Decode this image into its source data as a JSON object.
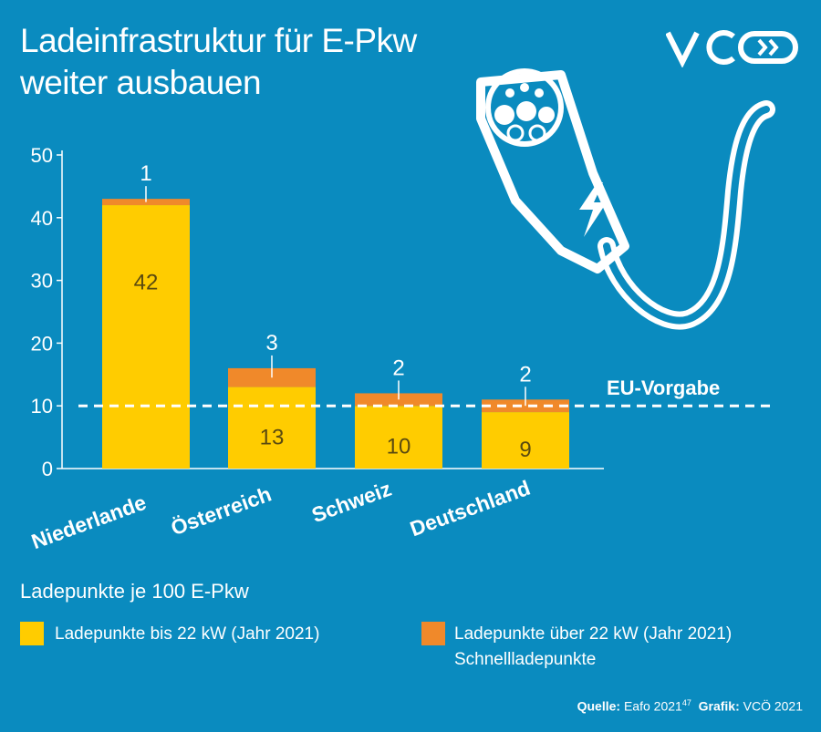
{
  "title_line1": "Ladeinfrastruktur für E-Pkw",
  "title_line2": "weiter ausbauen",
  "logo_text": "VCÖ",
  "colors": {
    "background": "#0a8bbf",
    "slow": "#ffcc00",
    "fast": "#f0892a",
    "white": "#ffffff"
  },
  "chart_data": {
    "type": "bar",
    "stacked": true,
    "categories": [
      "Niederlande",
      "Österreich",
      "Schweiz",
      "Deutschland"
    ],
    "series": [
      {
        "name": "Ladepunkte bis 22 kW (Jahr 2021)",
        "values": [
          42,
          13,
          10,
          9
        ]
      },
      {
        "name": "Ladepunkte über 22 kW (Jahr 2021)",
        "values": [
          1,
          3,
          2,
          2
        ]
      }
    ],
    "ylim": [
      0,
      50
    ],
    "yticks": [
      0,
      10,
      20,
      30,
      40,
      50
    ],
    "reference_line": {
      "value": 10,
      "label": "EU-Vorgabe"
    },
    "ylabel": "Ladepunkte je 100 E-Pkw",
    "grid": false,
    "legend_position": "bottom"
  },
  "legend": {
    "title": "Ladepunkte je 100 E-Pkw",
    "slow_label": "Ladepunkte bis 22 kW (Jahr 2021)",
    "fast_label": "Ladepunkte über 22 kW (Jahr 2021)",
    "fast_sub": "Schnellladepunkte"
  },
  "source": {
    "quelle_label": "Quelle:",
    "quelle_value": "Eafo 2021",
    "quelle_sup": "47",
    "grafik_label": "Grafik:",
    "grafik_value": "VCÖ 2021"
  }
}
